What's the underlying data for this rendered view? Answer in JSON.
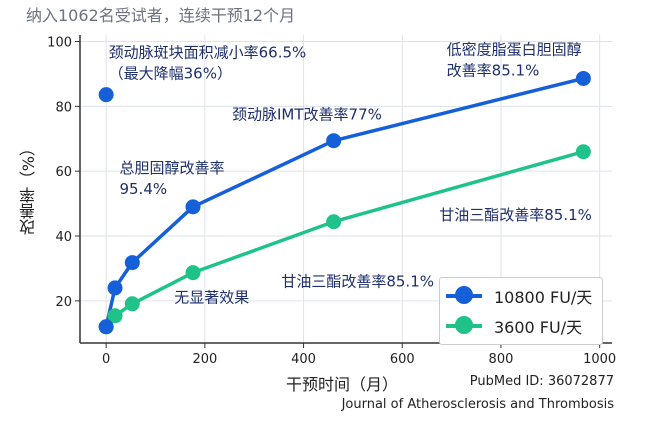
{
  "subtitle": "纳入1062名受试者，连续干预12个月",
  "footer": {
    "pubmed": "PubMed ID: 36072877",
    "journal": "Journal of Atherosclerosis and Thrombosis"
  },
  "colors": {
    "blue": "#1560d9",
    "green": "#1fc38a",
    "annotation": "#1e2f6b",
    "grid": "#dde3ea"
  },
  "chart_data": {
    "type": "line",
    "title": "",
    "xlabel": "干预时间（月）",
    "ylabel": "改善率（%）",
    "xlim": [
      -53,
      1025
    ],
    "ylim": [
      7,
      102
    ],
    "xticks": [
      0,
      200,
      400,
      600,
      800,
      1000
    ],
    "yticks": [
      20,
      40,
      60,
      80,
      100
    ],
    "grid": true,
    "legend_placement": "bottom-right",
    "series": [
      {
        "name": "10800 FU/天",
        "color": "#1560d9",
        "x": [
          0,
          18,
          53,
          176,
          461,
          967
        ],
        "y": [
          12,
          24,
          31.8,
          49,
          69.4,
          88.6
        ]
      },
      {
        "name": "3600 FU/天",
        "color": "#1fc38a",
        "x": [
          0,
          18,
          53,
          176,
          461,
          967
        ],
        "y": [
          12,
          15.4,
          19.1,
          28.7,
          44.4,
          66
        ]
      }
    ],
    "extra_points": [
      {
        "x": 0,
        "y": 83.6,
        "color": "#1560d9"
      }
    ],
    "annotations": [
      {
        "lines": [
          "颈动脉斑块面积减小率66.5%",
          "（最大降幅36%）"
        ],
        "x": 5,
        "y": 95
      },
      {
        "lines": [
          "低密度脂蛋白胆固醇",
          "改善率85.1%"
        ],
        "x": 690,
        "y": 96
      },
      {
        "lines": [
          "颈动脉IMT改善率77%"
        ],
        "x": 255,
        "y": 76
      },
      {
        "lines": [
          "总胆固醇改善率",
          "95.4%"
        ],
        "x": 27,
        "y": 59.5
      },
      {
        "lines": [
          "甘油三酯改善率85.1%"
        ],
        "x": 675,
        "y": 45
      },
      {
        "lines": [
          "甘油三酯改善率85.1%"
        ],
        "x": 355,
        "y": 24.5
      },
      {
        "lines": [
          "无显著效果"
        ],
        "x": 138,
        "y": 19.5
      }
    ]
  }
}
